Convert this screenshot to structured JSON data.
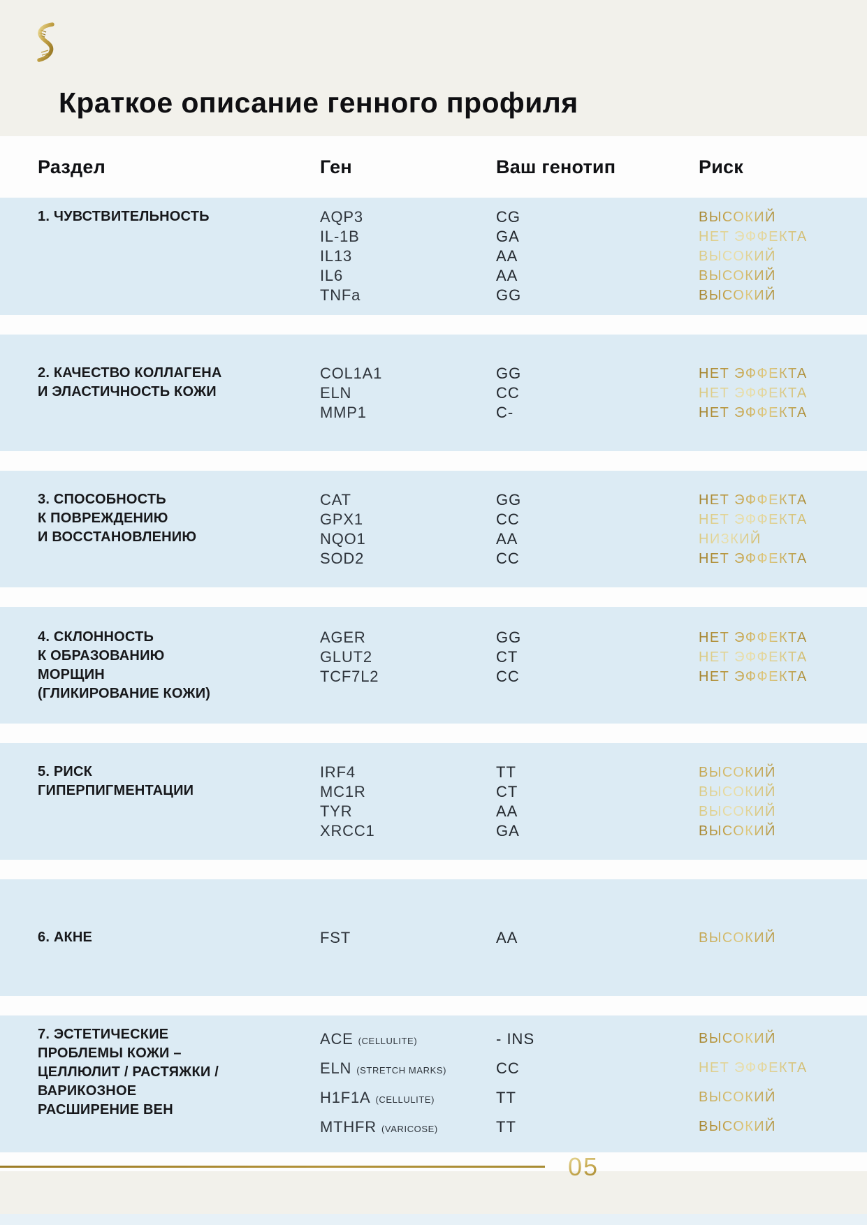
{
  "header": {
    "title": "Краткое описание генного профиля",
    "logo_icon": "dna-helix-icon"
  },
  "table": {
    "headers": {
      "section": "Раздел",
      "gene": "Ген",
      "genotype": "Ваш генотип",
      "risk": "Риск"
    },
    "sections": [
      {
        "label_lines": [
          "1. ЧУВСТВИТЕЛЬНОСТЬ"
        ],
        "rows": [
          {
            "gene": "AQP3",
            "genotype": "CG",
            "risk": "ВЫСОКИЙ",
            "shade": "dark"
          },
          {
            "gene": "IL-1B",
            "genotype": "GA",
            "risk": "НЕТ ЭФФЕКТА",
            "shade": "light"
          },
          {
            "gene": "IL13",
            "genotype": "AA",
            "risk": "ВЫСОКИЙ",
            "shade": "light"
          },
          {
            "gene": "IL6",
            "genotype": "AA",
            "risk": "ВЫСОКИЙ",
            "shade": "medium"
          },
          {
            "gene": "TNFa",
            "genotype": "GG",
            "risk": "ВЫСОКИЙ",
            "shade": "dark"
          }
        ]
      },
      {
        "label_lines": [
          "2. КАЧЕСТВО КОЛЛАГЕНА",
          "И ЭЛАСТИЧНОСТЬ КОЖИ"
        ],
        "rows": [
          {
            "gene": "COL1A1",
            "genotype": "GG",
            "risk": "НЕТ ЭФФЕКТА",
            "shade": "dark"
          },
          {
            "gene": "ELN",
            "genotype": "CC",
            "risk": "НЕТ ЭФФЕКТА",
            "shade": "light"
          },
          {
            "gene": "MMP1",
            "genotype": "C-",
            "risk": "НЕТ ЭФФЕКТА",
            "shade": "dark"
          }
        ]
      },
      {
        "label_lines": [
          "3. СПОСОБНОСТЬ",
          "К ПОВРЕЖДЕНИЮ",
          "И ВОССТАНОВЛЕНИЮ"
        ],
        "rows": [
          {
            "gene": "CAT",
            "genotype": "GG",
            "risk": "НЕТ ЭФФЕКТА",
            "shade": "dark"
          },
          {
            "gene": "GPX1",
            "genotype": "CC",
            "risk": "НЕТ ЭФФЕКТА",
            "shade": "light"
          },
          {
            "gene": "NQO1",
            "genotype": "AA",
            "risk": "НИЗКИЙ",
            "shade": "light"
          },
          {
            "gene": "SOD2",
            "genotype": "CC",
            "risk": "НЕТ ЭФФЕКТА",
            "shade": "dark"
          }
        ]
      },
      {
        "label_lines": [
          "4. СКЛОННОСТЬ",
          "К ОБРАЗОВАНИЮ",
          "МОРЩИН",
          "(ГЛИКИРОВАНИЕ КОЖИ)"
        ],
        "rows": [
          {
            "gene": "AGER",
            "genotype": "GG",
            "risk": "НЕТ ЭФФЕКТА",
            "shade": "dark"
          },
          {
            "gene": "GLUT2",
            "genotype": "CT",
            "risk": "НЕТ ЭФФЕКТА",
            "shade": "light"
          },
          {
            "gene": "TCF7L2",
            "genotype": "CC",
            "risk": "НЕТ ЭФФЕКТА",
            "shade": "dark"
          }
        ]
      },
      {
        "label_lines": [
          "5. РИСК",
          "ГИПЕРПИГМЕНТАЦИИ"
        ],
        "rows": [
          {
            "gene": "IRF4",
            "genotype": "TT",
            "risk": "ВЫСОКИЙ",
            "shade": "medium"
          },
          {
            "gene": "MC1R",
            "genotype": "CT",
            "risk": "ВЫСОКИЙ",
            "shade": "light"
          },
          {
            "gene": "TYR",
            "genotype": "AA",
            "risk": "ВЫСОКИЙ",
            "shade": "light"
          },
          {
            "gene": "XRCC1",
            "genotype": "GA",
            "risk": "ВЫСОКИЙ",
            "shade": "dark"
          }
        ]
      },
      {
        "label_lines": [
          "6. АКНЕ"
        ],
        "rows": [
          {
            "gene": "FST",
            "genotype": "AA",
            "risk": "ВЫСОКИЙ",
            "shade": "medium"
          }
        ]
      },
      {
        "label_lines": [
          "7. ЭСТЕТИЧЕСКИЕ",
          "ПРОБЛЕМЫ КОЖИ –",
          "ЦЕЛЛЮЛИТ / РАСТЯЖКИ /",
          "ВАРИКОЗНОЕ",
          "РАСШИРЕНИЕ ВЕН"
        ],
        "rows": [
          {
            "gene": "ACE",
            "note": "(CELLULITE)",
            "genotype": "- INS",
            "risk": "ВЫСОКИЙ",
            "shade": "dark"
          },
          {
            "gene": "ELN",
            "note": "(STRETCH MARKS)",
            "genotype": "CC",
            "risk": "НЕТ ЭФФЕКТА",
            "shade": "light"
          },
          {
            "gene": "H1F1A",
            "note": "(CELLULITE)",
            "genotype": "TT",
            "risk": "ВЫСОКИЙ",
            "shade": "medium"
          },
          {
            "gene": "MTHFR",
            "note": "(VARICOSE)",
            "genotype": "TT",
            "risk": "ВЫСОКИЙ",
            "shade": "dark"
          }
        ]
      }
    ]
  },
  "footer": {
    "page_number": "05"
  },
  "colors": {
    "page_background": "#f2f1eb",
    "row_background": "#dcebf4",
    "gap_background": "#fdfdfd",
    "accent_gold": "#b8963e",
    "accent_gold_light": "#e5d795",
    "heading_text": "#101114"
  }
}
